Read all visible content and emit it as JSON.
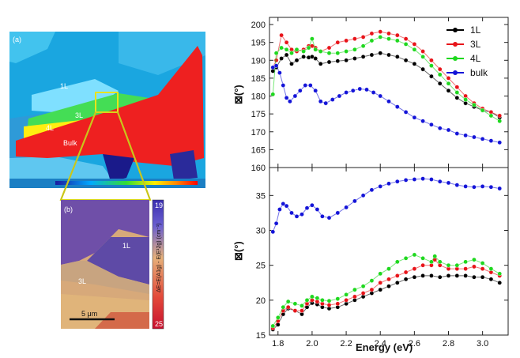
{
  "left_panels": {
    "panel_a": {
      "label": "(a)",
      "regions": [
        "1L",
        "3L",
        "4L",
        "Bulk"
      ]
    },
    "panel_b": {
      "label": "(b)",
      "regions": [
        "1L",
        "3L"
      ],
      "scalebar_label": "5 μm",
      "colorbar_top": "19",
      "colorbar_bottom": "25",
      "colorbar_title": "ΔE=E(A1g) - E(E¹2g) (cm⁻¹)"
    }
  },
  "chart_data": [
    {
      "type": "scatter",
      "panel": "top",
      "ylabel": "⊠(°)",
      "ylim": [
        160,
        202
      ],
      "yticks": [
        160,
        165,
        170,
        175,
        180,
        185,
        190,
        195,
        200
      ],
      "xlim": [
        1.75,
        3.15
      ],
      "xticks": [
        1.8,
        2.0,
        2.2,
        2.4,
        2.6,
        2.8,
        3.0
      ],
      "legend_position": "top-right",
      "series": [
        {
          "name": "1L",
          "color": "#000000",
          "x": [
            1.77,
            1.79,
            1.82,
            1.85,
            1.88,
            1.91,
            1.95,
            1.98,
            2.0,
            2.02,
            2.05,
            2.1,
            2.15,
            2.2,
            2.25,
            2.3,
            2.35,
            2.4,
            2.45,
            2.5,
            2.55,
            2.6,
            2.65,
            2.7,
            2.75,
            2.8,
            2.85,
            2.9,
            2.95,
            3.0,
            3.05,
            3.1
          ],
          "y": [
            187,
            188,
            190.5,
            191.5,
            189,
            190,
            191,
            190.8,
            191,
            190.5,
            189,
            189.5,
            189.8,
            190,
            190.5,
            191,
            191.5,
            192,
            191.5,
            191,
            190,
            189,
            187.5,
            185.5,
            183.5,
            181.5,
            179.5,
            178,
            177,
            176,
            175.5,
            174
          ]
        },
        {
          "name": "3L",
          "color": "#e8141a",
          "x": [
            1.77,
            1.79,
            1.82,
            1.85,
            1.88,
            1.91,
            1.95,
            1.98,
            2.0,
            2.02,
            2.05,
            2.1,
            2.15,
            2.2,
            2.25,
            2.3,
            2.35,
            2.4,
            2.45,
            2.5,
            2.55,
            2.6,
            2.65,
            2.7,
            2.75,
            2.8,
            2.85,
            2.9,
            2.95,
            3.0,
            3.05,
            3.1
          ],
          "y": [
            188,
            190,
            197,
            195,
            193,
            192.5,
            193,
            194,
            194,
            193.5,
            192.5,
            193.5,
            195,
            195.5,
            196,
            196.5,
            197.5,
            198,
            197.5,
            197,
            196,
            194.5,
            192.5,
            190,
            187.5,
            185,
            182.5,
            180,
            178,
            176.5,
            175.5,
            174.5
          ]
        },
        {
          "name": "4L",
          "color": "#1fd81f",
          "x": [
            1.77,
            1.79,
            1.82,
            1.85,
            1.88,
            1.91,
            1.95,
            1.98,
            2.0,
            2.02,
            2.05,
            2.1,
            2.15,
            2.2,
            2.25,
            2.3,
            2.35,
            2.4,
            2.45,
            2.5,
            2.55,
            2.6,
            2.65,
            2.7,
            2.75,
            2.8,
            2.85,
            2.9,
            2.95,
            3.0,
            3.05,
            3.1
          ],
          "y": [
            180.5,
            192,
            193.5,
            193,
            192,
            193,
            192.5,
            193.5,
            196,
            193,
            192.5,
            192,
            192,
            192.5,
            193,
            194,
            195.5,
            196.5,
            196,
            195.5,
            194.5,
            193,
            191,
            188.5,
            186,
            183.5,
            181,
            179,
            177.5,
            176,
            174.5,
            173
          ]
        },
        {
          "name": "bulk",
          "color": "#1414d8",
          "x": [
            1.77,
            1.79,
            1.81,
            1.83,
            1.85,
            1.87,
            1.9,
            1.93,
            1.96,
            1.99,
            2.02,
            2.05,
            2.08,
            2.12,
            2.16,
            2.2,
            2.24,
            2.28,
            2.32,
            2.36,
            2.4,
            2.45,
            2.5,
            2.55,
            2.6,
            2.65,
            2.7,
            2.75,
            2.8,
            2.85,
            2.9,
            2.95,
            3.0,
            3.05,
            3.1
          ],
          "y": [
            188,
            188.5,
            186.5,
            183,
            179.5,
            178.5,
            180,
            181.5,
            183,
            183,
            181.5,
            178.5,
            178,
            179,
            180,
            181,
            181.5,
            182,
            181.8,
            181,
            180,
            178.5,
            177,
            175.5,
            174,
            173,
            172,
            171,
            170.5,
            169.5,
            169,
            168.5,
            168,
            167.5,
            167
          ]
        }
      ]
    },
    {
      "type": "scatter",
      "panel": "bottom",
      "xlabel": "Energy (eV)",
      "ylabel": "⊠(°)",
      "ylim": [
        15,
        39
      ],
      "yticks": [
        15,
        20,
        25,
        30,
        35
      ],
      "xlim": [
        1.75,
        3.15
      ],
      "xticks": [
        1.8,
        2.0,
        2.2,
        2.4,
        2.6,
        2.8,
        3.0
      ],
      "series": [
        {
          "name": "1L",
          "color": "#000000",
          "x": [
            1.77,
            1.8,
            1.83,
            1.86,
            1.9,
            1.94,
            1.97,
            2.0,
            2.03,
            2.06,
            2.1,
            2.15,
            2.2,
            2.25,
            2.3,
            2.35,
            2.4,
            2.45,
            2.5,
            2.55,
            2.6,
            2.65,
            2.7,
            2.75,
            2.8,
            2.85,
            2.9,
            2.95,
            3.0,
            3.05,
            3.1
          ],
          "y": [
            15.8,
            16.5,
            18,
            18.8,
            18.5,
            18,
            19,
            19.6,
            19.4,
            19,
            18.8,
            19,
            19.5,
            20,
            20.5,
            21,
            21.5,
            22,
            22.5,
            23,
            23.3,
            23.5,
            23.5,
            23.3,
            23.5,
            23.5,
            23.5,
            23.3,
            23.3,
            23,
            22.5
          ]
        },
        {
          "name": "3L",
          "color": "#e8141a",
          "x": [
            1.77,
            1.8,
            1.83,
            1.86,
            1.9,
            1.94,
            1.97,
            2.0,
            2.03,
            2.06,
            2.1,
            2.15,
            2.2,
            2.25,
            2.3,
            2.35,
            2.4,
            2.45,
            2.5,
            2.55,
            2.6,
            2.65,
            2.7,
            2.72,
            2.75,
            2.8,
            2.85,
            2.9,
            2.95,
            3.0,
            3.05,
            3.1
          ],
          "y": [
            16,
            17,
            18.5,
            19,
            18.5,
            18.5,
            19.5,
            20,
            19.8,
            19.5,
            19.3,
            19.5,
            20,
            20.5,
            21,
            21.5,
            22.5,
            23,
            23.5,
            24,
            24.5,
            25,
            25,
            25.8,
            25,
            24.5,
            24.5,
            24.5,
            24.8,
            24.5,
            24,
            23.5
          ]
        },
        {
          "name": "4L",
          "color": "#1fd81f",
          "x": [
            1.77,
            1.8,
            1.83,
            1.86,
            1.9,
            1.94,
            1.97,
            2.0,
            2.03,
            2.06,
            2.1,
            2.15,
            2.2,
            2.25,
            2.3,
            2.35,
            2.4,
            2.45,
            2.5,
            2.55,
            2.6,
            2.65,
            2.7,
            2.72,
            2.75,
            2.8,
            2.85,
            2.9,
            2.95,
            3.0,
            3.05,
            3.1
          ],
          "y": [
            16.3,
            17.5,
            19,
            19.8,
            19.5,
            19.2,
            20,
            20.5,
            20.3,
            20,
            19.9,
            20.2,
            20.8,
            21.5,
            22,
            22.8,
            23.8,
            24.5,
            25.5,
            26,
            26.5,
            26,
            25.5,
            26.3,
            25.5,
            25,
            25,
            25.5,
            25.8,
            25.3,
            24.5,
            23.8
          ]
        },
        {
          "name": "bulk",
          "color": "#1414d8",
          "x": [
            1.77,
            1.79,
            1.81,
            1.83,
            1.85,
            1.88,
            1.91,
            1.94,
            1.97,
            2.0,
            2.03,
            2.06,
            2.1,
            2.15,
            2.2,
            2.25,
            2.3,
            2.35,
            2.4,
            2.45,
            2.5,
            2.55,
            2.6,
            2.65,
            2.7,
            2.75,
            2.8,
            2.85,
            2.9,
            2.95,
            3.0,
            3.05,
            3.1
          ],
          "y": [
            29.8,
            31,
            33,
            33.8,
            33.5,
            32.5,
            32,
            32.3,
            33.2,
            33.6,
            33,
            32,
            31.8,
            32.5,
            33.3,
            34.2,
            35,
            35.8,
            36.3,
            36.7,
            37,
            37.2,
            37.3,
            37.4,
            37.3,
            37,
            36.8,
            36.5,
            36.3,
            36.2,
            36.3,
            36.2,
            36
          ]
        }
      ]
    }
  ]
}
